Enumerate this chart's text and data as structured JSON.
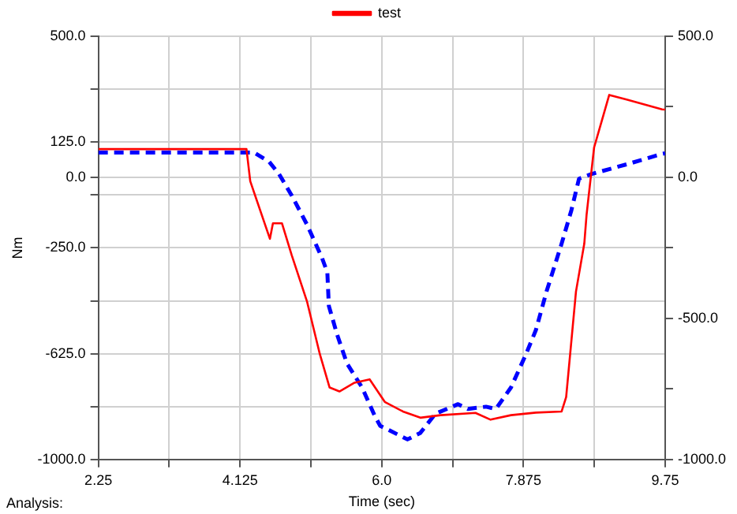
{
  "chart_data": {
    "type": "line",
    "xlabel": "Time (sec)",
    "ylabel": "Nm",
    "annotations": [
      "Analysis:"
    ],
    "xlim": [
      2.25,
      9.75
    ],
    "xticks": [
      2.25,
      {
        "value": 3.1875,
        "label": null
      },
      4.125,
      {
        "value": 5.0625,
        "label": null
      },
      {
        "value": 6,
        "label": "6.0"
      },
      {
        "value": 6.9375,
        "label": null
      },
      7.875,
      {
        "value": 8.8125,
        "label": null
      },
      9.75
    ],
    "ylim": [
      -1000,
      500
    ],
    "yticks": [
      {
        "value": -1000,
        "label": "-1000.0"
      },
      {
        "value": -812.5,
        "label": null
      },
      {
        "value": -625,
        "label": "-625.0"
      },
      {
        "value": -437.5,
        "label": null
      },
      {
        "value": -250,
        "label": "-250.0"
      },
      {
        "value": -62.5,
        "label": null
      },
      {
        "value": 0,
        "label": "0.0"
      },
      {
        "value": 125,
        "label": "125.0"
      },
      {
        "value": 312.5,
        "label": null
      },
      {
        "value": 500,
        "label": "500.0"
      }
    ],
    "y2lim": [
      -1000,
      500
    ],
    "y2ticks": [
      {
        "value": -1000,
        "label": "-1000.0"
      },
      {
        "value": -750,
        "label": null
      },
      {
        "value": -500,
        "label": "-500.0"
      },
      {
        "value": -250,
        "label": null
      },
      {
        "value": 0,
        "label": "0.0"
      },
      {
        "value": 250,
        "label": null
      },
      {
        "value": 500,
        "label": "500.0"
      }
    ],
    "grid": true,
    "legend": "top",
    "marker": "none",
    "series": [
      {
        "name": "test",
        "color": "#ff0000",
        "line_style": "solid",
        "x": [
          2.25,
          4.21,
          4.26,
          4.52,
          4.56,
          4.68,
          4.81,
          5.01,
          5.18,
          5.31,
          5.44,
          5.64,
          5.84,
          6.04,
          6.28,
          6.51,
          6.78,
          7.24,
          7.44,
          7.71,
          8.04,
          8.38,
          8.44,
          8.57,
          8.68,
          8.71,
          8.81,
          9.01,
          9.24,
          9.71,
          9.75
        ],
        "values": [
          100,
          100,
          -14,
          -218,
          -163,
          -163,
          -277,
          -439,
          -626,
          -745,
          -759,
          -728,
          -716,
          -796,
          -830,
          -852,
          -843,
          -835,
          -859,
          -843,
          -834,
          -830,
          -779,
          -405,
          -235,
          -133,
          106,
          292,
          276,
          241,
          240
        ]
      },
      {
        "color": "#0000ff",
        "line_style": "dashed",
        "x": [
          2.25,
          4.31,
          4.51,
          4.64,
          4.81,
          5.01,
          5.21,
          5.28,
          5.3,
          5.41,
          5.54,
          5.74,
          5.91,
          5.98,
          6.11,
          6.34,
          6.51,
          6.71,
          7.01,
          7.14,
          7.38,
          7.51,
          7.71,
          7.91,
          8.04,
          8.18,
          8.38,
          8.51,
          8.61,
          8.78,
          9.24,
          9.71,
          9.75
        ],
        "values": [
          88,
          88,
          55,
          12,
          -65,
          -167,
          -286,
          -337,
          -456,
          -558,
          -660,
          -745,
          -847,
          -881,
          -898,
          -929,
          -906,
          -838,
          -804,
          -821,
          -813,
          -821,
          -745,
          -626,
          -541,
          -405,
          -235,
          -116,
          -5,
          12,
          46,
          83,
          85
        ]
      }
    ]
  }
}
